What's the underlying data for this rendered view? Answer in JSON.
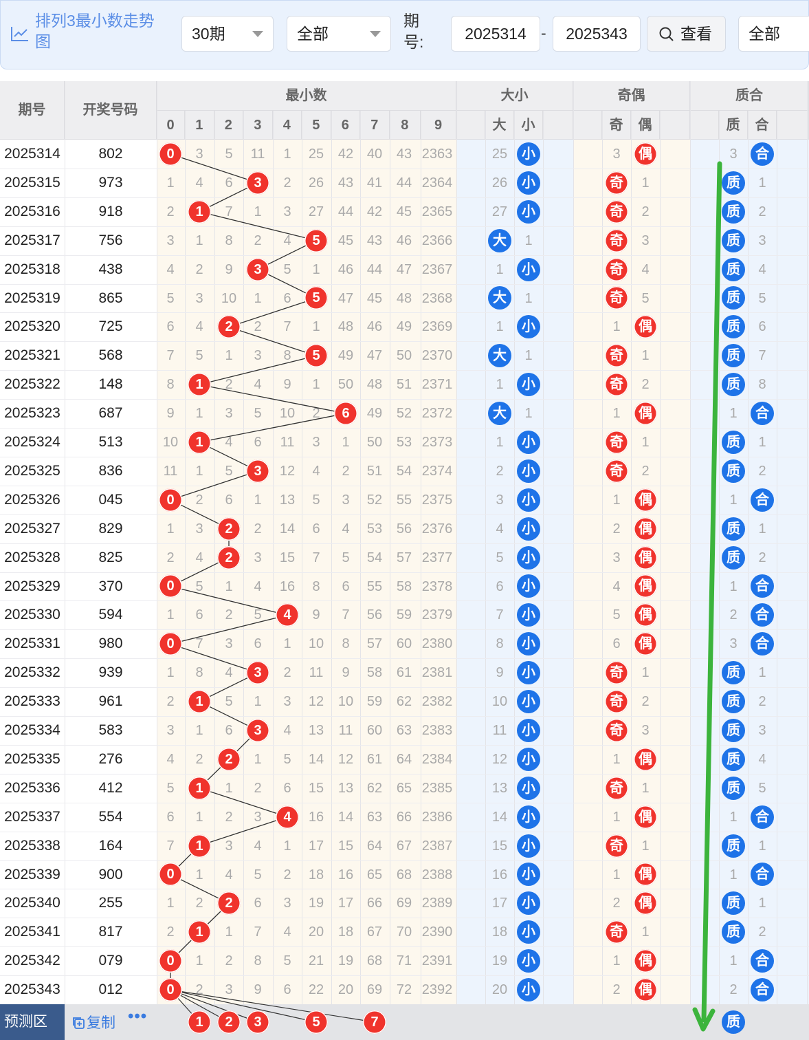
{
  "toolbar": {
    "title": "排列3最小数走势图",
    "period_select": "30期",
    "scope_select": "全部",
    "issue_label": "期号:",
    "issue_from": "2025314",
    "issue_to": "2025343",
    "dash": "-",
    "view_button": "查看",
    "filter_select": "全部"
  },
  "header": {
    "issue": "期号",
    "numbers": "开奖号码",
    "min_group": "最小数",
    "size_group": "大小",
    "parity_group": "奇偶",
    "prime_group": "质合",
    "digits": [
      "0",
      "1",
      "2",
      "3",
      "4",
      "5",
      "6",
      "7",
      "8",
      "9"
    ],
    "size_cols": [
      "大",
      "小"
    ],
    "parity_cols": [
      "奇",
      "偶"
    ],
    "prime_cols": [
      "质",
      "合"
    ]
  },
  "rows": [
    {
      "issue": "2025314",
      "num": "802",
      "min": [
        "0",
        "3",
        "5",
        "11",
        "1",
        "25",
        "42",
        "40",
        "43",
        "2363"
      ],
      "hit": 0,
      "size": [
        "25",
        "小"
      ],
      "sz": 1,
      "par": [
        "3",
        "偶"
      ],
      "pr": 1,
      "pri": [
        "3",
        "合"
      ],
      "pm": 1
    },
    {
      "issue": "2025315",
      "num": "973",
      "min": [
        "1",
        "4",
        "6",
        "3",
        "2",
        "26",
        "43",
        "41",
        "44",
        "2364"
      ],
      "hit": 3,
      "size": [
        "26",
        "小"
      ],
      "sz": 1,
      "par": [
        "奇",
        "1"
      ],
      "pr": 0,
      "pri": [
        "质",
        "1"
      ],
      "pm": 0
    },
    {
      "issue": "2025316",
      "num": "918",
      "min": [
        "2",
        "1",
        "7",
        "1",
        "3",
        "27",
        "44",
        "42",
        "45",
        "2365"
      ],
      "hit": 1,
      "size": [
        "27",
        "小"
      ],
      "sz": 1,
      "par": [
        "奇",
        "2"
      ],
      "pr": 0,
      "pri": [
        "质",
        "2"
      ],
      "pm": 0
    },
    {
      "issue": "2025317",
      "num": "756",
      "min": [
        "3",
        "1",
        "8",
        "2",
        "4",
        "5",
        "45",
        "43",
        "46",
        "2366"
      ],
      "hit": 5,
      "size": [
        "大",
        "1"
      ],
      "sz": 0,
      "par": [
        "奇",
        "3"
      ],
      "pr": 0,
      "pri": [
        "质",
        "3"
      ],
      "pm": 0
    },
    {
      "issue": "2025318",
      "num": "438",
      "min": [
        "4",
        "2",
        "9",
        "3",
        "5",
        "1",
        "46",
        "44",
        "47",
        "2367"
      ],
      "hit": 3,
      "size": [
        "1",
        "小"
      ],
      "sz": 1,
      "par": [
        "奇",
        "4"
      ],
      "pr": 0,
      "pri": [
        "质",
        "4"
      ],
      "pm": 0
    },
    {
      "issue": "2025319",
      "num": "865",
      "min": [
        "5",
        "3",
        "10",
        "1",
        "6",
        "5",
        "47",
        "45",
        "48",
        "2368"
      ],
      "hit": 5,
      "size": [
        "大",
        "1"
      ],
      "sz": 0,
      "par": [
        "奇",
        "5"
      ],
      "pr": 0,
      "pri": [
        "质",
        "5"
      ],
      "pm": 0
    },
    {
      "issue": "2025320",
      "num": "725",
      "min": [
        "6",
        "4",
        "2",
        "2",
        "7",
        "1",
        "48",
        "46",
        "49",
        "2369"
      ],
      "hit": 2,
      "size": [
        "1",
        "小"
      ],
      "sz": 1,
      "par": [
        "1",
        "偶"
      ],
      "pr": 1,
      "pri": [
        "质",
        "6"
      ],
      "pm": 0
    },
    {
      "issue": "2025321",
      "num": "568",
      "min": [
        "7",
        "5",
        "1",
        "3",
        "8",
        "5",
        "49",
        "47",
        "50",
        "2370"
      ],
      "hit": 5,
      "size": [
        "大",
        "1"
      ],
      "sz": 0,
      "par": [
        "奇",
        "1"
      ],
      "pr": 0,
      "pri": [
        "质",
        "7"
      ],
      "pm": 0
    },
    {
      "issue": "2025322",
      "num": "148",
      "min": [
        "8",
        "1",
        "2",
        "4",
        "9",
        "1",
        "50",
        "48",
        "51",
        "2371"
      ],
      "hit": 1,
      "size": [
        "1",
        "小"
      ],
      "sz": 1,
      "par": [
        "奇",
        "2"
      ],
      "pr": 0,
      "pri": [
        "质",
        "8"
      ],
      "pm": 0
    },
    {
      "issue": "2025323",
      "num": "687",
      "min": [
        "9",
        "1",
        "3",
        "5",
        "10",
        "2",
        "6",
        "49",
        "52",
        "2372"
      ],
      "hit": 6,
      "size": [
        "大",
        "1"
      ],
      "sz": 0,
      "par": [
        "1",
        "偶"
      ],
      "pr": 1,
      "pri": [
        "1",
        "合"
      ],
      "pm": 1
    },
    {
      "issue": "2025324",
      "num": "513",
      "min": [
        "10",
        "1",
        "4",
        "6",
        "11",
        "3",
        "1",
        "50",
        "53",
        "2373"
      ],
      "hit": 1,
      "size": [
        "1",
        "小"
      ],
      "sz": 1,
      "par": [
        "奇",
        "1"
      ],
      "pr": 0,
      "pri": [
        "质",
        "1"
      ],
      "pm": 0
    },
    {
      "issue": "2025325",
      "num": "836",
      "min": [
        "11",
        "1",
        "5",
        "3",
        "12",
        "4",
        "2",
        "51",
        "54",
        "2374"
      ],
      "hit": 3,
      "size": [
        "2",
        "小"
      ],
      "sz": 1,
      "par": [
        "奇",
        "2"
      ],
      "pr": 0,
      "pri": [
        "质",
        "2"
      ],
      "pm": 0
    },
    {
      "issue": "2025326",
      "num": "045",
      "min": [
        "0",
        "2",
        "6",
        "1",
        "13",
        "5",
        "3",
        "52",
        "55",
        "2375"
      ],
      "hit": 0,
      "size": [
        "3",
        "小"
      ],
      "sz": 1,
      "par": [
        "1",
        "偶"
      ],
      "pr": 1,
      "pri": [
        "1",
        "合"
      ],
      "pm": 1
    },
    {
      "issue": "2025327",
      "num": "829",
      "min": [
        "1",
        "3",
        "2",
        "2",
        "14",
        "6",
        "4",
        "53",
        "56",
        "2376"
      ],
      "hit": 2,
      "size": [
        "4",
        "小"
      ],
      "sz": 1,
      "par": [
        "2",
        "偶"
      ],
      "pr": 1,
      "pri": [
        "质",
        "1"
      ],
      "pm": 0
    },
    {
      "issue": "2025328",
      "num": "825",
      "min": [
        "2",
        "4",
        "2",
        "3",
        "15",
        "7",
        "5",
        "54",
        "57",
        "2377"
      ],
      "hit": 2,
      "size": [
        "5",
        "小"
      ],
      "sz": 1,
      "par": [
        "3",
        "偶"
      ],
      "pr": 1,
      "pri": [
        "质",
        "2"
      ],
      "pm": 0
    },
    {
      "issue": "2025329",
      "num": "370",
      "min": [
        "0",
        "5",
        "1",
        "4",
        "16",
        "8",
        "6",
        "55",
        "58",
        "2378"
      ],
      "hit": 0,
      "size": [
        "6",
        "小"
      ],
      "sz": 1,
      "par": [
        "4",
        "偶"
      ],
      "pr": 1,
      "pri": [
        "1",
        "合"
      ],
      "pm": 1
    },
    {
      "issue": "2025330",
      "num": "594",
      "min": [
        "1",
        "6",
        "2",
        "5",
        "4",
        "9",
        "7",
        "56",
        "59",
        "2379"
      ],
      "hit": 4,
      "size": [
        "7",
        "小"
      ],
      "sz": 1,
      "par": [
        "5",
        "偶"
      ],
      "pr": 1,
      "pri": [
        "2",
        "合"
      ],
      "pm": 1
    },
    {
      "issue": "2025331",
      "num": "980",
      "min": [
        "0",
        "7",
        "3",
        "6",
        "1",
        "10",
        "8",
        "57",
        "60",
        "2380"
      ],
      "hit": 0,
      "size": [
        "8",
        "小"
      ],
      "sz": 1,
      "par": [
        "6",
        "偶"
      ],
      "pr": 1,
      "pri": [
        "3",
        "合"
      ],
      "pm": 1
    },
    {
      "issue": "2025332",
      "num": "939",
      "min": [
        "1",
        "8",
        "4",
        "3",
        "2",
        "11",
        "9",
        "58",
        "61",
        "2381"
      ],
      "hit": 3,
      "size": [
        "9",
        "小"
      ],
      "sz": 1,
      "par": [
        "奇",
        "1"
      ],
      "pr": 0,
      "pri": [
        "质",
        "1"
      ],
      "pm": 0
    },
    {
      "issue": "2025333",
      "num": "961",
      "min": [
        "2",
        "1",
        "5",
        "1",
        "3",
        "12",
        "10",
        "59",
        "62",
        "2382"
      ],
      "hit": 1,
      "size": [
        "10",
        "小"
      ],
      "sz": 1,
      "par": [
        "奇",
        "2"
      ],
      "pr": 0,
      "pri": [
        "质",
        "2"
      ],
      "pm": 0
    },
    {
      "issue": "2025334",
      "num": "583",
      "min": [
        "3",
        "1",
        "6",
        "3",
        "4",
        "13",
        "11",
        "60",
        "63",
        "2383"
      ],
      "hit": 3,
      "size": [
        "11",
        "小"
      ],
      "sz": 1,
      "par": [
        "奇",
        "3"
      ],
      "pr": 0,
      "pri": [
        "质",
        "3"
      ],
      "pm": 0
    },
    {
      "issue": "2025335",
      "num": "276",
      "min": [
        "4",
        "2",
        "2",
        "1",
        "5",
        "14",
        "12",
        "61",
        "64",
        "2384"
      ],
      "hit": 2,
      "size": [
        "12",
        "小"
      ],
      "sz": 1,
      "par": [
        "1",
        "偶"
      ],
      "pr": 1,
      "pri": [
        "质",
        "4"
      ],
      "pm": 0
    },
    {
      "issue": "2025336",
      "num": "412",
      "min": [
        "5",
        "1",
        "1",
        "2",
        "6",
        "15",
        "13",
        "62",
        "65",
        "2385"
      ],
      "hit": 1,
      "size": [
        "13",
        "小"
      ],
      "sz": 1,
      "par": [
        "奇",
        "1"
      ],
      "pr": 0,
      "pri": [
        "质",
        "5"
      ],
      "pm": 0
    },
    {
      "issue": "2025337",
      "num": "554",
      "min": [
        "6",
        "1",
        "2",
        "3",
        "4",
        "16",
        "14",
        "63",
        "66",
        "2386"
      ],
      "hit": 4,
      "size": [
        "14",
        "小"
      ],
      "sz": 1,
      "par": [
        "1",
        "偶"
      ],
      "pr": 1,
      "pri": [
        "1",
        "合"
      ],
      "pm": 1
    },
    {
      "issue": "2025338",
      "num": "164",
      "min": [
        "7",
        "1",
        "3",
        "4",
        "1",
        "17",
        "15",
        "64",
        "67",
        "2387"
      ],
      "hit": 1,
      "size": [
        "15",
        "小"
      ],
      "sz": 1,
      "par": [
        "奇",
        "1"
      ],
      "pr": 0,
      "pri": [
        "质",
        "1"
      ],
      "pm": 0
    },
    {
      "issue": "2025339",
      "num": "900",
      "min": [
        "0",
        "1",
        "4",
        "5",
        "2",
        "18",
        "16",
        "65",
        "68",
        "2388"
      ],
      "hit": 0,
      "size": [
        "16",
        "小"
      ],
      "sz": 1,
      "par": [
        "1",
        "偶"
      ],
      "pr": 1,
      "pri": [
        "1",
        "合"
      ],
      "pm": 1
    },
    {
      "issue": "2025340",
      "num": "255",
      "min": [
        "1",
        "2",
        "2",
        "6",
        "3",
        "19",
        "17",
        "66",
        "69",
        "2389"
      ],
      "hit": 2,
      "size": [
        "17",
        "小"
      ],
      "sz": 1,
      "par": [
        "2",
        "偶"
      ],
      "pr": 1,
      "pri": [
        "质",
        "1"
      ],
      "pm": 0
    },
    {
      "issue": "2025341",
      "num": "817",
      "min": [
        "2",
        "1",
        "1",
        "7",
        "4",
        "20",
        "18",
        "67",
        "70",
        "2390"
      ],
      "hit": 1,
      "size": [
        "18",
        "小"
      ],
      "sz": 1,
      "par": [
        "奇",
        "1"
      ],
      "pr": 0,
      "pri": [
        "质",
        "2"
      ],
      "pm": 0
    },
    {
      "issue": "2025342",
      "num": "079",
      "min": [
        "0",
        "1",
        "2",
        "8",
        "5",
        "21",
        "19",
        "68",
        "71",
        "2391"
      ],
      "hit": 0,
      "size": [
        "19",
        "小"
      ],
      "sz": 1,
      "par": [
        "1",
        "偶"
      ],
      "pr": 1,
      "pri": [
        "1",
        "合"
      ],
      "pm": 1
    },
    {
      "issue": "2025343",
      "num": "012",
      "min": [
        "0",
        "2",
        "3",
        "9",
        "6",
        "22",
        "20",
        "69",
        "72",
        "2392"
      ],
      "hit": 0,
      "size": [
        "20",
        "小"
      ],
      "sz": 1,
      "par": [
        "2",
        "偶"
      ],
      "pr": 1,
      "pri": [
        "2",
        "合"
      ],
      "pm": 1
    }
  ],
  "predict": {
    "label": "预测区",
    "plus": "十",
    "copy": "复制",
    "more": "•••",
    "balls": [
      "1",
      "2",
      "3",
      "5",
      "7"
    ],
    "prime": "质"
  },
  "colors": {
    "red_ball": "#f0332c",
    "blue_ball": "#1e73e8",
    "arrow": "#3cb43c",
    "header_bg": "#eeeef0",
    "accent": "#5b8ee6"
  },
  "icons": {
    "title_icon": "line-chart-icon",
    "caret": "chevron-down-icon",
    "view": "search-icon",
    "copy": "copy-icon",
    "more": "more-dots-icon",
    "trend_arrow": "down-arrow-icon"
  }
}
